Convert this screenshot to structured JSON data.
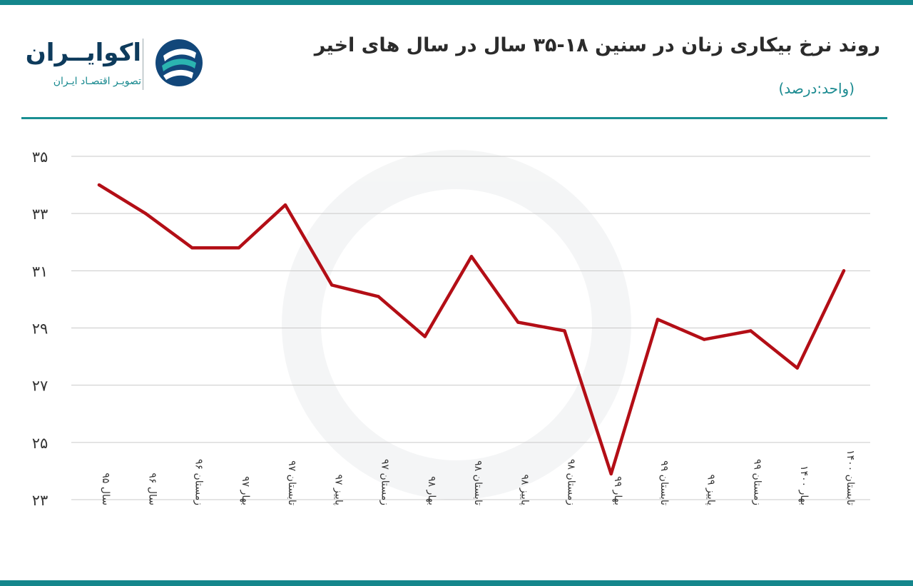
{
  "header": {
    "title": "روند نرخ بیکاری زنان در سنین ۱۸-۳۵ سال در سال های اخیر",
    "subtitle": "(واحد:درصد)"
  },
  "logo": {
    "name": "اکوایــران",
    "tagline": "تصویـر اقتصـاد ایـران",
    "icon": "ecoiran-logo-icon"
  },
  "colors": {
    "accent": "#14868c",
    "line": "#b30e16",
    "title": "#2b2b2b"
  },
  "chart_data": {
    "type": "line",
    "title": "روند نرخ بیکاری زنان در سنین ۱۸-۳۵ سال در سال های اخیر",
    "ylabel": "",
    "xlabel": "",
    "unit": "(واحد:درصد)",
    "ylim": [
      23,
      35
    ],
    "yticks": [
      23,
      25,
      27,
      29,
      31,
      33,
      35
    ],
    "ytick_labels": [
      "۲۳",
      "۲۵",
      "۲۷",
      "۲۹",
      "۳۱",
      "۳۳",
      "۳۵"
    ],
    "grid": true,
    "categories": [
      "سال ۹۵",
      "سال ۹۶",
      "زمستان ۹۶",
      "بهار ۹۷",
      "تابستان ۹۷",
      "پاییز ۹۷",
      "زمستان ۹۷",
      "بهار ۹۸",
      "تابستان ۹۸",
      "پاییز ۹۸",
      "زمستان ۹۸",
      "بهار ۹۹",
      "تابستان ۹۹",
      "پاییز ۹۹",
      "زمستان ۹۹",
      "بهار ۱۴۰۰",
      "تابستان ۱۴۰۰"
    ],
    "series": [
      {
        "values": [
          34.0,
          33.0,
          31.8,
          31.8,
          33.3,
          30.5,
          30.1,
          28.7,
          31.5,
          29.2,
          28.9,
          23.9,
          29.3,
          28.6,
          28.9,
          27.6,
          31.0
        ],
        "color": "#b30e16"
      }
    ]
  }
}
